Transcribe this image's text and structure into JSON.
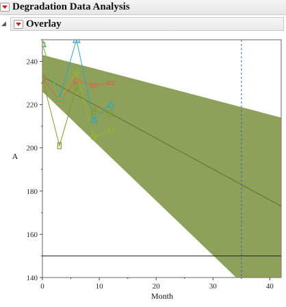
{
  "report": {
    "title": "Degradation Data Analysis",
    "section_title": "Overlay"
  },
  "icons": {
    "disclosure_open": "triangle-down-open-icon",
    "menu": "red-triangle-menu-icon"
  },
  "colors": {
    "band_fill": "#7a8f3c",
    "fit_line": "#5e7a2a",
    "spec_line": "#222222",
    "vline": "#3a5fc4",
    "series_red": "#d2694e",
    "series_cyan": "#2aa6c0",
    "series_green": "#7f9a2e",
    "series_lime": "#9ab52f"
  },
  "chart_data": {
    "type": "scatter",
    "title": "",
    "xlabel": "Month",
    "ylabel": "A",
    "xlim": [
      0,
      42
    ],
    "ylim": [
      140,
      250
    ],
    "xticks": [
      0,
      10,
      20,
      30,
      40
    ],
    "yticks": [
      140,
      160,
      180,
      200,
      220,
      240
    ],
    "grid": false,
    "legend": "none",
    "series": [
      {
        "marker": "square",
        "color": "#d2694e",
        "x": [
          0,
          3,
          6,
          9,
          12
        ],
        "y": [
          232,
          222,
          231,
          229,
          230
        ]
      },
      {
        "marker": "triangle",
        "color": "#2aa6c0",
        "x": [
          0,
          3,
          6,
          9,
          12
        ],
        "y": [
          248,
          223,
          250,
          213,
          220
        ]
      },
      {
        "marker": "rectangle",
        "color": "#7f9a2e",
        "x": [
          0,
          3,
          6,
          9,
          12
        ],
        "y": [
          232,
          201,
          228,
          217,
          216
        ]
      },
      {
        "marker": "circle",
        "color": "#9ab52f",
        "x": [
          0,
          3,
          6,
          9,
          12
        ],
        "y": [
          248,
          222,
          235,
          205,
          208
        ]
      }
    ],
    "fit_line": {
      "x": [
        0,
        42
      ],
      "y": [
        233,
        173
      ]
    },
    "confidence_band": {
      "x": [
        0,
        42
      ],
      "upper": [
        243,
        214
      ],
      "lower": [
        226,
        120
      ]
    },
    "spec_limit": {
      "y": 150
    },
    "reference_x": {
      "x": 35
    }
  }
}
